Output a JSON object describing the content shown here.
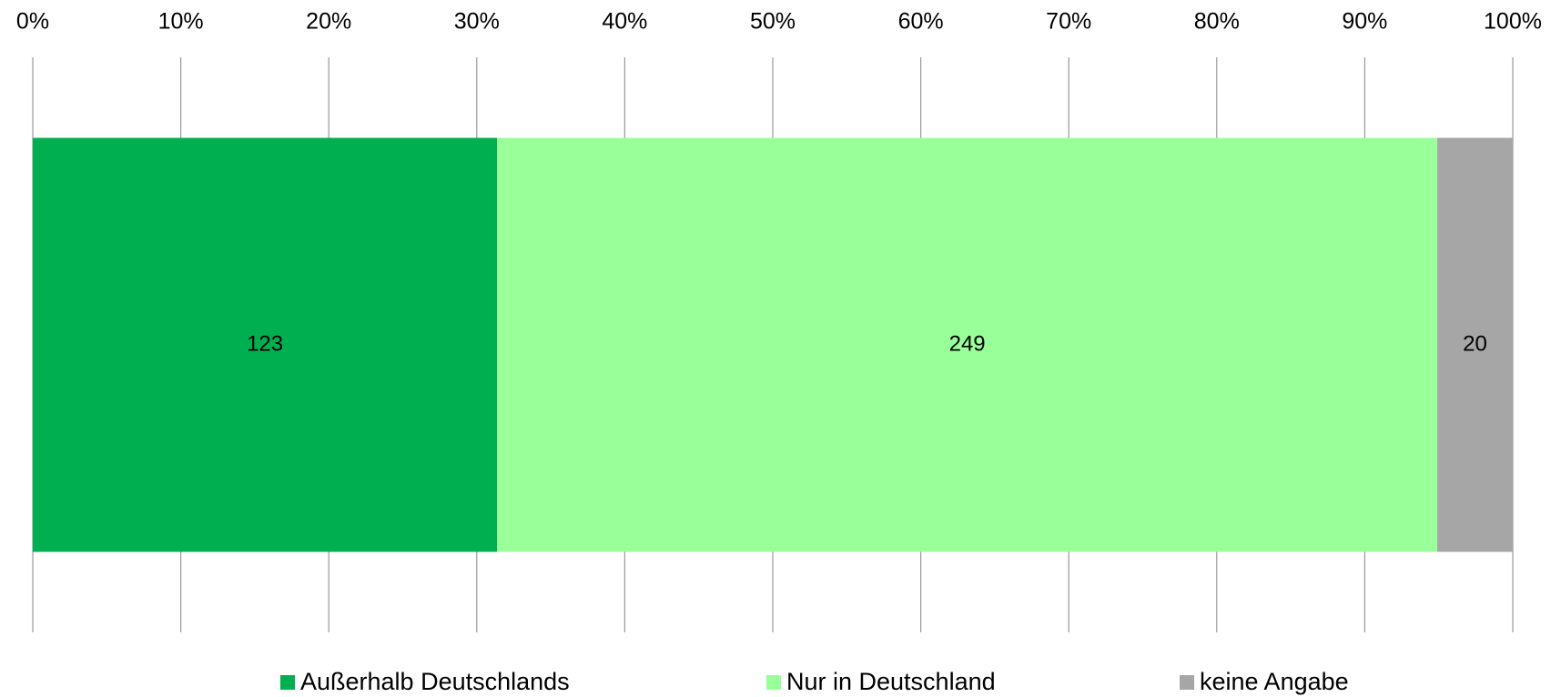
{
  "chart_data": {
    "type": "bar",
    "orientation": "horizontal",
    "stacking": "percent",
    "categories": [
      null
    ],
    "series": [
      {
        "name": "Außerhalb Deutschlands",
        "color": "#00b050",
        "values": [
          123
        ]
      },
      {
        "name": "Nur in Deutschland",
        "color": "#99ff99",
        "values": [
          249
        ]
      },
      {
        "name": "keine Angabe",
        "color": "#a6a6a6",
        "values": [
          20
        ]
      }
    ],
    "xlim": [
      0,
      100
    ],
    "xticks": [
      {
        "value": 0,
        "label": "0%"
      },
      {
        "value": 10,
        "label": "10%"
      },
      {
        "value": 20,
        "label": "20%"
      },
      {
        "value": 30,
        "label": "30%"
      },
      {
        "value": 40,
        "label": "40%"
      },
      {
        "value": 50,
        "label": "50%"
      },
      {
        "value": 60,
        "label": "60%"
      },
      {
        "value": 70,
        "label": "70%"
      },
      {
        "value": 80,
        "label": "80%"
      },
      {
        "value": 90,
        "label": "90%"
      },
      {
        "value": 100,
        "label": "100%"
      }
    ],
    "grid": true,
    "legend": "bottom"
  }
}
